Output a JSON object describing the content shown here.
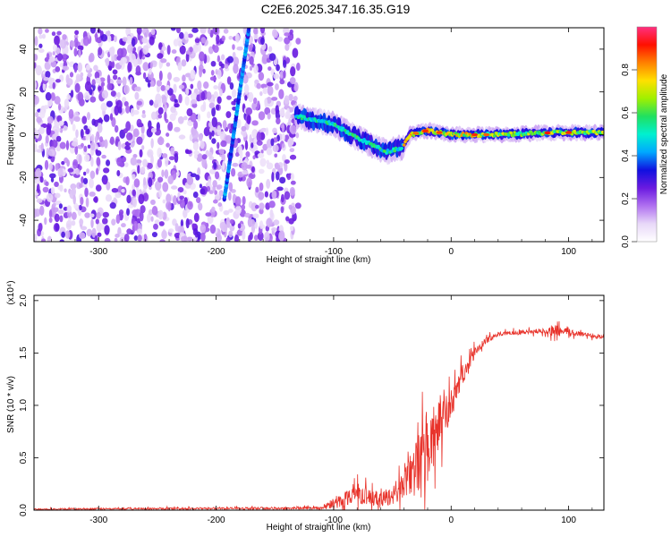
{
  "title": "C2E6.2025.347.16.35.G19",
  "chart_data": [
    {
      "type": "heatmap",
      "xlabel": "Height of straight line (km)",
      "ylabel": "Frequency (Hz)",
      "xlim": [
        -355,
        130
      ],
      "ylim": [
        -50,
        50
      ],
      "xticks": [
        -300,
        -200,
        -100,
        0,
        100
      ],
      "yticks": [
        -40,
        -20,
        0,
        20,
        40
      ],
      "colorbar": {
        "label": "Normalized spectral amplitude",
        "range": [
          0.0,
          1.0
        ],
        "ticks": [
          0.0,
          0.2,
          0.4,
          0.6,
          0.8
        ],
        "colors": [
          "#ffffff",
          "#e8d8f8",
          "#b070f0",
          "#6a1ae0",
          "#1010e0",
          "#00a8ff",
          "#00f0d0",
          "#20e060",
          "#a0f000",
          "#ffe000",
          "#ff8000",
          "#ff1000",
          "#ff3080"
        ]
      },
      "features": {
        "noise_region_x": [
          -355,
          -130
        ],
        "direct_track": [
          {
            "x": -193,
            "y": -30
          },
          {
            "x": -172,
            "y": 50
          }
        ],
        "reflected_track": [
          {
            "x": -132,
            "y": 9
          },
          {
            "x": -120,
            "y": 7
          },
          {
            "x": -100,
            "y": 5
          },
          {
            "x": -85,
            "y": 0
          },
          {
            "x": -70,
            "y": -4
          },
          {
            "x": -55,
            "y": -8
          },
          {
            "x": -42,
            "y": -6
          },
          {
            "x": -35,
            "y": 0
          },
          {
            "x": -20,
            "y": 2
          },
          {
            "x": 0,
            "y": 0
          },
          {
            "x": 40,
            "y": 0
          },
          {
            "x": 90,
            "y": 1
          },
          {
            "x": 130,
            "y": 1
          }
        ]
      }
    },
    {
      "type": "line",
      "xlabel": "Height of straight line (km)",
      "ylabel": "SNR (10 * v/v)",
      "yscale_note": "(x10⁴)",
      "xlim": [
        -355,
        130
      ],
      "ylim": [
        0.0,
        2.05
      ],
      "xticks": [
        -300,
        -200,
        -100,
        0,
        100
      ],
      "yticks": [
        0.0,
        0.5,
        1.0,
        1.5,
        2.0
      ],
      "series": [
        {
          "color": "#e8322a",
          "envelope": {
            "x": [
              -355,
              -110,
              -100,
              -90,
              -80,
              -70,
              -60,
              -50,
              -40,
              -30,
              -20,
              -10,
              0,
              10,
              20,
              30,
              40,
              60,
              80,
              90,
              100,
              130
            ],
            "y": [
              0.01,
              0.02,
              0.06,
              0.12,
              0.16,
              0.12,
              0.1,
              0.15,
              0.25,
              0.4,
              0.6,
              0.8,
              1.0,
              1.3,
              1.5,
              1.62,
              1.68,
              1.7,
              1.71,
              1.71,
              1.7,
              1.65
            ]
          },
          "noise_amplitude": {
            "x": [
              -355,
              -110,
              -100,
              -80,
              -60,
              -40,
              -30,
              -20,
              -10,
              0,
              10,
              20,
              30,
              40,
              80,
              90,
              100,
              130
            ],
            "y": [
              0.01,
              0.02,
              0.1,
              0.15,
              0.12,
              0.2,
              0.45,
              0.55,
              0.4,
              0.25,
              0.15,
              0.08,
              0.05,
              0.03,
              0.04,
              0.1,
              0.05,
              0.03
            ]
          }
        }
      ]
    }
  ]
}
